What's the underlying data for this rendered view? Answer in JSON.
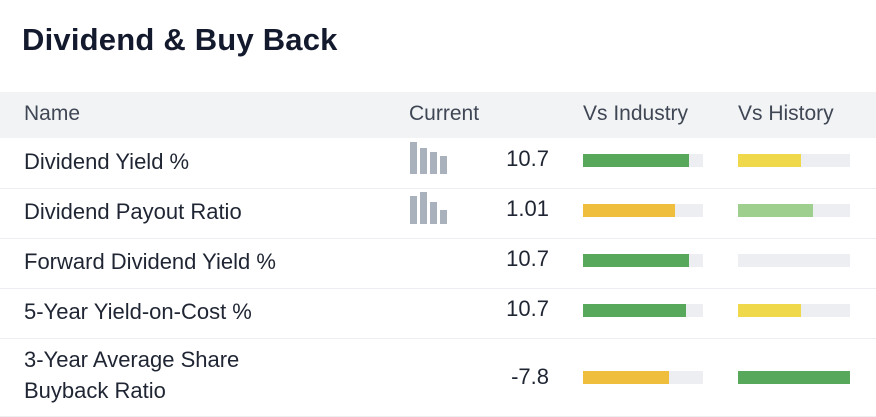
{
  "title": "Dividend & Buy Back",
  "columns": {
    "name": "Name",
    "current": "Current",
    "vs_industry": "Vs Industry",
    "vs_history": "Vs History"
  },
  "colors": {
    "green": "#57a85a",
    "light_green": "#9fcf8f",
    "yellow": "#efd84a",
    "orange": "#efbe3c",
    "track": "#eceef1",
    "sparkline": "#a9b1bc"
  },
  "rows": [
    {
      "name_lines": [
        "Dividend Yield %"
      ],
      "value": "10.7",
      "sparkline": true,
      "industry": {
        "fill": 0.88,
        "color": "green"
      },
      "history": {
        "fill": 0.56,
        "color": "yellow"
      }
    },
    {
      "name_lines": [
        "Dividend Payout Ratio"
      ],
      "value": "1.01",
      "sparkline": true,
      "industry": {
        "fill": 0.77,
        "color": "orange"
      },
      "history": {
        "fill": 0.67,
        "color": "light_green"
      }
    },
    {
      "name_lines": [
        "Forward Dividend Yield %"
      ],
      "value": "10.7",
      "sparkline": false,
      "industry": {
        "fill": 0.88,
        "color": "green"
      },
      "history": {
        "fill": 0.0,
        "color": "green"
      }
    },
    {
      "name_lines": [
        "5-Year Yield-on-Cost %"
      ],
      "value": "10.7",
      "sparkline": false,
      "industry": {
        "fill": 0.86,
        "color": "green"
      },
      "history": {
        "fill": 0.56,
        "color": "yellow"
      }
    },
    {
      "name_lines": [
        "3-Year Average Share",
        "Buyback Ratio"
      ],
      "value": "-7.8",
      "sparkline": false,
      "industry": {
        "fill": 0.72,
        "color": "orange"
      },
      "history": {
        "fill": 1.0,
        "color": "green"
      }
    }
  ]
}
